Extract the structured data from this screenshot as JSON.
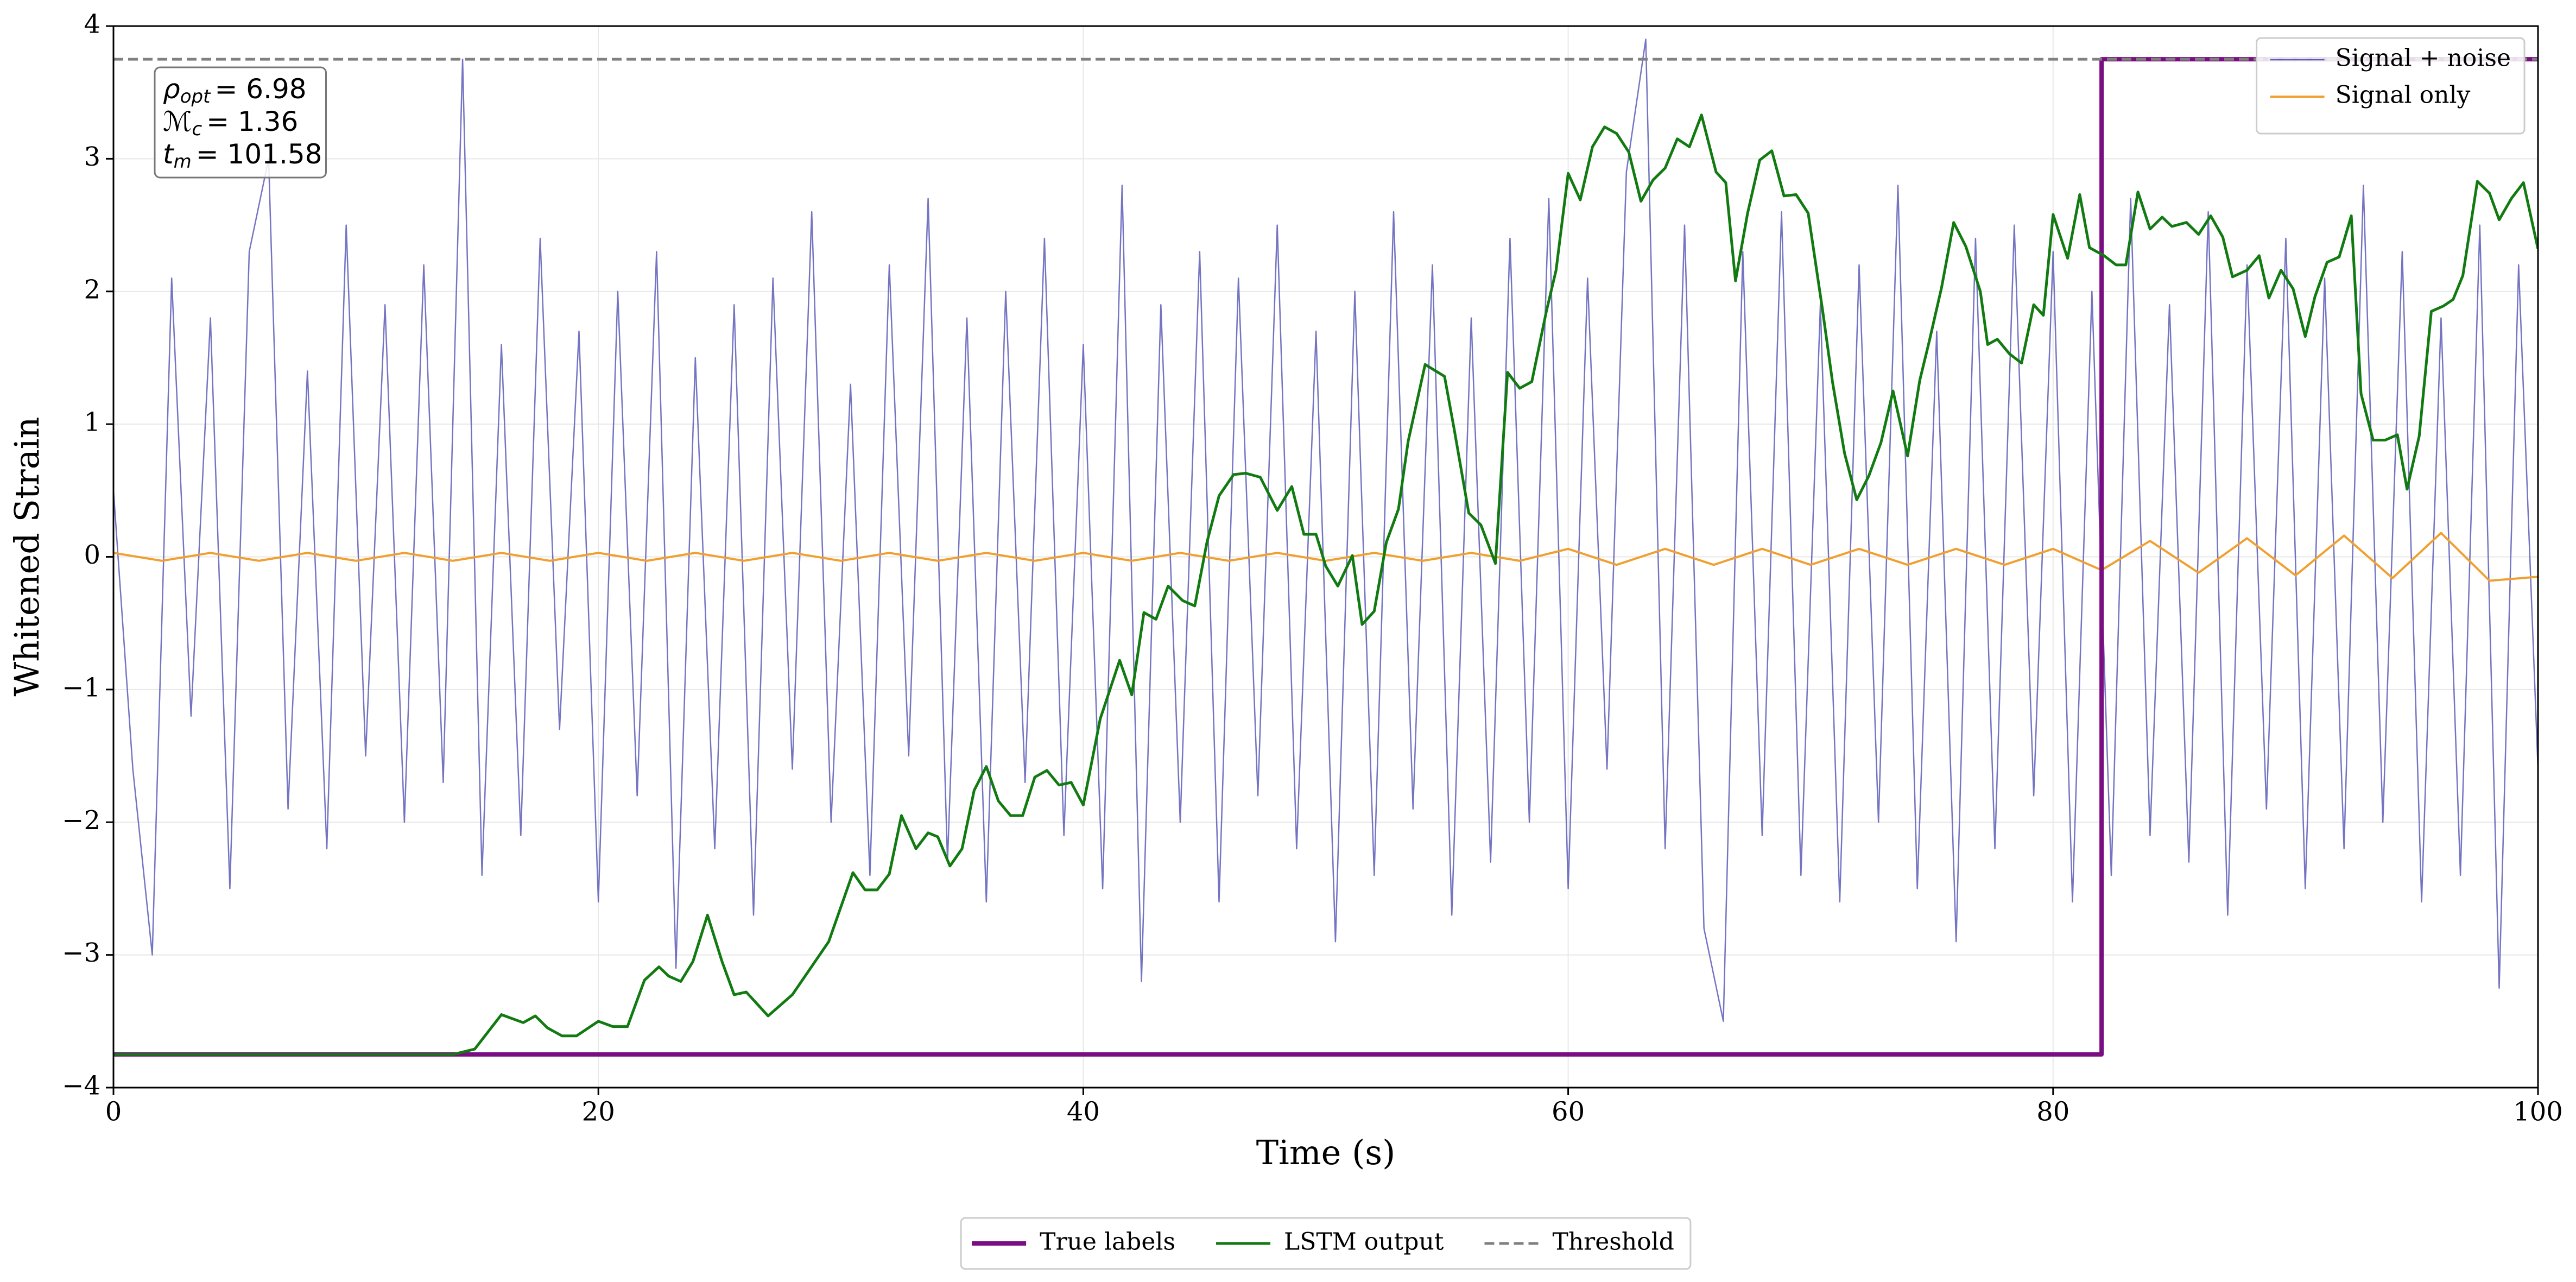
{
  "chart_data": {
    "type": "line",
    "xlabel": "Time (s)",
    "ylabel": "Whitened Strain",
    "xlim": [
      0,
      100
    ],
    "ylim": [
      -4,
      4
    ],
    "xticks": [
      0,
      20,
      40,
      60,
      80,
      100
    ],
    "yticks": [
      {
        "value": -4,
        "label": "−4"
      },
      {
        "value": -3,
        "label": "−3"
      },
      {
        "value": -2,
        "label": "−2"
      },
      {
        "value": -1,
        "label": "−1"
      },
      0,
      1,
      2,
      3,
      4
    ],
    "grid": true,
    "annotation": [
      {
        "symbol": "ρ",
        "subscript": "opt",
        "text": "= 6.98"
      },
      {
        "symbol": "ℳ",
        "subscript": "c",
        "text": "= 1.36"
      },
      {
        "symbol": "t",
        "subscript": "m",
        "text": "= 101.58"
      }
    ],
    "series": [
      {
        "name": "Signal + noise",
        "color": "#5c5cb8",
        "linewidth": 2.5,
        "linestyle": "solid",
        "legend": "upper right",
        "x": [
          0,
          0.8,
          1.6,
          2.4,
          3.2,
          4,
          4.8,
          5.6,
          6.4,
          7.2,
          8,
          8.8,
          9.6,
          10.4,
          11.2,
          12,
          12.8,
          13.6,
          14.4,
          15.2,
          16,
          16.8,
          17.6,
          18.4,
          19.2,
          20,
          20.8,
          21.6,
          22.4,
          23.2,
          24,
          24.8,
          25.6,
          26.4,
          27.2,
          28,
          28.8,
          29.6,
          30.4,
          31.2,
          32,
          32.8,
          33.6,
          34.4,
          35.2,
          36,
          36.8,
          37.6,
          38.4,
          39.2,
          40,
          40.8,
          41.6,
          42.4,
          43.2,
          44,
          44.8,
          45.6,
          46.4,
          47.2,
          48,
          48.8,
          49.6,
          50.4,
          51.2,
          52,
          52.8,
          53.6,
          54.4,
          55.2,
          56,
          56.8,
          57.6,
          58.4,
          59.2,
          60,
          60.8,
          61.6,
          62.4,
          63.2,
          64,
          64.8,
          65.6,
          66.4,
          67.2,
          68,
          68.8,
          69.6,
          70.4,
          71.2,
          72,
          72.8,
          73.6,
          74.4,
          75.2,
          76,
          76.8,
          77.6,
          78.4,
          79.2,
          80,
          80.8,
          81.6,
          82.4,
          83.2,
          84,
          84.8,
          85.6,
          86.4,
          87.2,
          88,
          88.8,
          89.6,
          90.4,
          91.2,
          92,
          92.8,
          93.6,
          94.4,
          95.2,
          96,
          96.8,
          97.6,
          98.4,
          99.2,
          100
        ],
        "values": [
          0.5,
          -1.6,
          -3.0,
          2.1,
          -1.2,
          1.8,
          -2.5,
          2.3,
          3.0,
          -1.9,
          1.4,
          -2.2,
          2.5,
          -1.5,
          1.9,
          -2.0,
          2.2,
          -1.7,
          3.75,
          -2.4,
          1.6,
          -2.1,
          2.4,
          -1.3,
          1.7,
          -2.6,
          2.0,
          -1.8,
          2.3,
          -3.1,
          1.5,
          -2.2,
          1.9,
          -2.7,
          2.1,
          -1.6,
          2.6,
          -2.0,
          1.3,
          -2.4,
          2.2,
          -1.5,
          2.7,
          -2.3,
          1.8,
          -2.6,
          2.0,
          -1.7,
          2.4,
          -2.1,
          1.6,
          -2.5,
          2.8,
          -3.2,
          1.9,
          -2.0,
          2.3,
          -2.6,
          2.1,
          -1.8,
          2.5,
          -2.2,
          1.7,
          -2.9,
          2.0,
          -2.4,
          2.6,
          -1.9,
          2.2,
          -2.7,
          1.8,
          -2.3,
          2.4,
          -2.0,
          2.7,
          -2.5,
          2.1,
          -1.6,
          2.9,
          3.9,
          -2.2,
          2.5,
          -2.8,
          -3.5,
          2.3,
          -2.1,
          2.6,
          -2.4,
          1.9,
          -2.6,
          2.2,
          -2.0,
          2.8,
          -2.5,
          1.7,
          -2.9,
          2.4,
          -2.2,
          2.5,
          -1.8,
          2.3,
          -2.6,
          2.0,
          -2.4,
          2.7,
          -2.1,
          1.9,
          -2.3,
          2.6,
          -2.7,
          2.2,
          -1.9,
          2.4,
          -2.5,
          2.1,
          -2.2,
          2.8,
          -2.0,
          2.3,
          -2.6,
          1.8,
          -2.4,
          2.5,
          -3.25,
          2.2,
          -1.6
        ]
      },
      {
        "name": "Signal only",
        "color": "#f0a030",
        "linewidth": 4,
        "linestyle": "solid",
        "legend": "upper right",
        "x": [
          0,
          2,
          4,
          6,
          8,
          10,
          12,
          14,
          16,
          18,
          20,
          22,
          24,
          26,
          28,
          30,
          32,
          34,
          36,
          38,
          40,
          42,
          44,
          46,
          48,
          50,
          52,
          54,
          56,
          58,
          60,
          62,
          64,
          66,
          68,
          70,
          72,
          74,
          76,
          78,
          80,
          82,
          84,
          86,
          88,
          90,
          92,
          94,
          96,
          98,
          100
        ],
        "values": [
          0.03,
          -0.03,
          0.03,
          -0.03,
          0.03,
          -0.03,
          0.03,
          -0.03,
          0.03,
          -0.03,
          0.03,
          -0.03,
          0.03,
          -0.03,
          0.03,
          -0.03,
          0.03,
          -0.03,
          0.03,
          -0.03,
          0.03,
          -0.03,
          0.03,
          -0.03,
          0.03,
          -0.03,
          0.03,
          -0.03,
          0.03,
          -0.03,
          0.06,
          -0.06,
          0.06,
          -0.06,
          0.06,
          -0.06,
          0.06,
          -0.06,
          0.06,
          -0.06,
          0.06,
          -0.1,
          0.12,
          -0.12,
          0.14,
          -0.14,
          0.16,
          -0.16,
          0.18,
          -0.18,
          -0.15
        ]
      },
      {
        "name": "True labels",
        "color": "#7b0d82",
        "linewidth": 8,
        "linestyle": "solid",
        "legend": "lower center",
        "x": [
          0,
          82,
          82,
          100
        ],
        "values": [
          -3.75,
          -3.75,
          3.75,
          3.75
        ]
      },
      {
        "name": "LSTM output",
        "color": "#117a11",
        "linewidth": 5,
        "linestyle": "solid",
        "legend": "lower center",
        "x": [
          0,
          14.0,
          14.9,
          16.0,
          16.9,
          17.4,
          17.9,
          18.5,
          19.1,
          20.0,
          20.6,
          21.2,
          21.9,
          22.5,
          22.9,
          23.4,
          23.9,
          24.5,
          25.1,
          25.6,
          26.1,
          27.0,
          28.0,
          29.5,
          30.5,
          31.0,
          31.5,
          32.0,
          32.5,
          33.1,
          33.6,
          34.0,
          34.5,
          35.0,
          35.5,
          36.0,
          36.5,
          37.0,
          37.5,
          38.0,
          38.5,
          39.0,
          39.5,
          40.0,
          40.7,
          41.5,
          42.0,
          42.5,
          43.0,
          43.5,
          44.1,
          44.6,
          45.1,
          45.6,
          46.2,
          46.7,
          47.3,
          48.0,
          48.6,
          49.1,
          49.6,
          50.0,
          50.5,
          51.1,
          51.5,
          52.0,
          52.5,
          53.0,
          53.4,
          54.1,
          54.9,
          55.3,
          55.9,
          56.4,
          57.0,
          57.5,
          58.0,
          58.5,
          59.1,
          59.5,
          60.0,
          60.5,
          61.0,
          61.5,
          62.0,
          62.5,
          63.0,
          63.5,
          64.0,
          64.5,
          65.0,
          65.5,
          66.1,
          66.5,
          66.9,
          67.4,
          67.9,
          68.4,
          68.9,
          69.4,
          69.9,
          70.5,
          70.9,
          71.4,
          71.9,
          72.4,
          72.9,
          73.4,
          74.0,
          74.5,
          74.9,
          75.4,
          75.9,
          76.4,
          77.0,
          77.3,
          77.7,
          78.2,
          78.7,
          79.2,
          79.6,
          80.0,
          80.6,
          81.1,
          81.5,
          82.1,
          82.6,
          83.0,
          83.5,
          84.0,
          84.5,
          84.9,
          85.5,
          86.0,
          86.5,
          87.0,
          87.4,
          88.0,
          88.5,
          88.9,
          89.4,
          89.9,
          90.4,
          90.8,
          91.3,
          91.8,
          92.3,
          92.7,
          93.2,
          93.7,
          94.2,
          94.6,
          95.1,
          95.6,
          96.1,
          96.5,
          96.9,
          97.5,
          98.0,
          98.4,
          98.9,
          99.4,
          100
        ],
        "values": [
          -3.75,
          -3.75,
          -3.71,
          -3.45,
          -3.51,
          -3.46,
          -3.55,
          -3.61,
          -3.61,
          -3.5,
          -3.54,
          -3.54,
          -3.19,
          -3.09,
          -3.16,
          -3.2,
          -3.05,
          -2.7,
          -3.05,
          -3.3,
          -3.28,
          -3.46,
          -3.3,
          -2.9,
          -2.38,
          -2.51,
          -2.51,
          -2.39,
          -1.95,
          -2.2,
          -2.08,
          -2.11,
          -2.33,
          -2.2,
          -1.76,
          -1.58,
          -1.84,
          -1.95,
          -1.95,
          -1.66,
          -1.61,
          -1.72,
          -1.7,
          -1.87,
          -1.22,
          -0.78,
          -1.04,
          -0.42,
          -0.47,
          -0.22,
          -0.33,
          -0.37,
          0.11,
          0.46,
          0.62,
          0.63,
          0.6,
          0.35,
          0.53,
          0.17,
          0.17,
          -0.07,
          -0.22,
          0.01,
          -0.51,
          -0.41,
          0.11,
          0.36,
          0.87,
          1.45,
          1.36,
          0.96,
          0.33,
          0.24,
          -0.05,
          1.39,
          1.27,
          1.32,
          1.85,
          2.16,
          2.89,
          2.69,
          3.09,
          3.24,
          3.19,
          3.05,
          2.68,
          2.84,
          2.93,
          3.15,
          3.09,
          3.33,
          2.9,
          2.82,
          2.08,
          2.59,
          2.99,
          3.06,
          2.72,
          2.73,
          2.59,
          1.85,
          1.32,
          0.78,
          0.43,
          0.61,
          0.86,
          1.25,
          0.76,
          1.33,
          1.63,
          2.03,
          2.52,
          2.34,
          2.0,
          1.6,
          1.64,
          1.53,
          1.46,
          1.9,
          1.82,
          2.58,
          2.25,
          2.73,
          2.33,
          2.27,
          2.2,
          2.2,
          2.75,
          2.47,
          2.56,
          2.49,
          2.52,
          2.43,
          2.57,
          2.41,
          2.11,
          2.16,
          2.27,
          1.95,
          2.16,
          2.02,
          1.66,
          1.96,
          2.22,
          2.26,
          2.57,
          1.23,
          0.88,
          0.88,
          0.92,
          0.51,
          0.91,
          1.85,
          1.89,
          1.94,
          2.12,
          2.83,
          2.74,
          2.54,
          2.7,
          2.82,
          2.32
        ]
      },
      {
        "name": "Threshold",
        "color": "#808080",
        "linewidth": 5,
        "linestyle": "dashed",
        "legend": "lower center",
        "x": [
          0,
          100
        ],
        "values": [
          3.75,
          3.75
        ]
      }
    ]
  }
}
